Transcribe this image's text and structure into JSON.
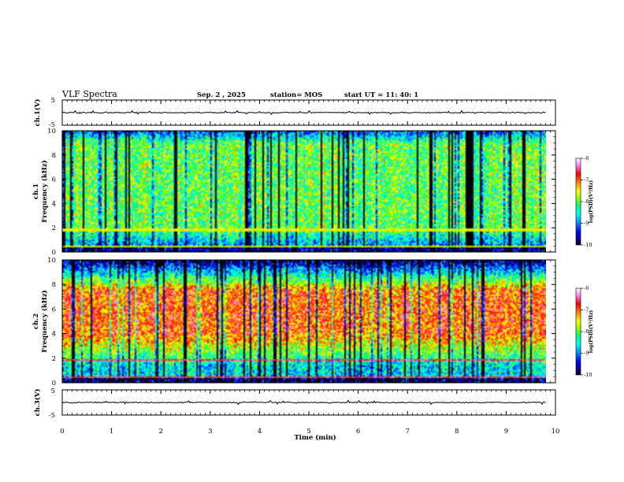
{
  "header": {
    "title": "VLF Spectra",
    "date": "Sep. 2  , 2025",
    "station": "station= MOS",
    "start": "start  UT =   11: 40: 1"
  },
  "colors": {
    "scale": [
      "#000000",
      "#0000a0",
      "#0000ff",
      "#00a0ff",
      "#00ffff",
      "#00ff80",
      "#80ff00",
      "#ffff00",
      "#ff8000",
      "#ff0000",
      "#ff80ff",
      "#ffffff"
    ]
  },
  "chart_data": [
    {
      "type": "line",
      "name": "ch1-waveform",
      "ylabel": "ch.1(V)",
      "ylim": [
        -5,
        5
      ],
      "yticks": [
        "5",
        "-5"
      ],
      "baseline_value": 0
    },
    {
      "type": "heatmap",
      "name": "ch1-spectrogram",
      "ylabel": "ch.1\nFrequency (kHz)",
      "ylim": [
        0,
        10
      ],
      "yticks": [
        "0",
        "2",
        "4",
        "6",
        "8",
        "10"
      ],
      "xlim": [
        0,
        9.83
      ],
      "intensity_unit": "log(PSD)(V²/Hz)",
      "colorbar_ticks": [
        "-6",
        "-7",
        "-8",
        "-9",
        "-10"
      ],
      "colorbar_range": [
        -10,
        -6
      ],
      "dominant_band_khz": [
        2,
        9
      ],
      "dominant_level": -8,
      "line_khz": [
        0.4,
        1.8
      ]
    },
    {
      "type": "heatmap",
      "name": "ch2-spectrogram",
      "ylabel": "ch.2\nFrequency (kHz)",
      "ylim": [
        0,
        10
      ],
      "yticks": [
        "0",
        "2",
        "4",
        "6",
        "8",
        "10"
      ],
      "xlim": [
        0,
        9.83
      ],
      "intensity_unit": "log(PSD)(V²/Hz)",
      "colorbar_ticks": [
        "-6",
        "-7",
        "-8",
        "-9",
        "-10"
      ],
      "colorbar_range": [
        -10,
        -6
      ],
      "dominant_band_khz": [
        4,
        7.5
      ],
      "dominant_level": -7,
      "line_khz": [
        0.4,
        1.8
      ]
    },
    {
      "type": "line",
      "name": "ch3-waveform",
      "ylabel": "ch.3(V)",
      "ylim": [
        -5,
        5
      ],
      "yticks": [
        "5",
        "-5"
      ],
      "baseline_value": 0
    }
  ],
  "xaxis": {
    "label": "Time  (min)",
    "ticks": [
      "0",
      "1",
      "2",
      "3",
      "4",
      "5",
      "6",
      "7",
      "8",
      "9",
      "10"
    ],
    "range": [
      0,
      10
    ]
  }
}
